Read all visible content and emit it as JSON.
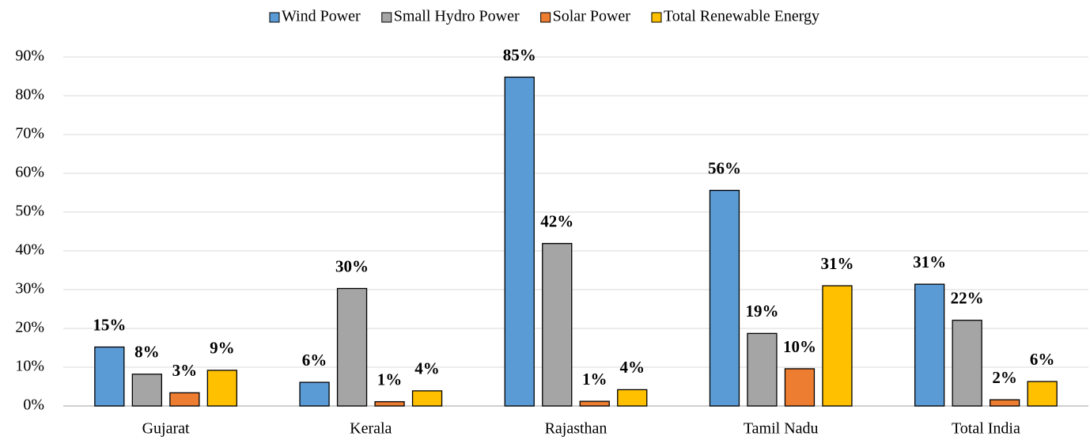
{
  "chart_data": {
    "type": "bar",
    "categories": [
      "Gujarat",
      "Kerala",
      "Rajasthan",
      "Tamil Nadu",
      "Total India"
    ],
    "series": [
      {
        "name": "Wind Power",
        "color": "#5b9bd5",
        "values": [
          15.2,
          6.1,
          84.8,
          55.6,
          31.4
        ],
        "value_labels": [
          "15%",
          "6%",
          "85%",
          "56%",
          "31%"
        ]
      },
      {
        "name": "Small Hydro Power",
        "color": "#a5a5a5",
        "values": [
          8.2,
          30.3,
          41.9,
          18.7,
          22.1
        ],
        "value_labels": [
          "8%",
          "30%",
          "42%",
          "19%",
          "22%"
        ]
      },
      {
        "name": "Solar Power",
        "color": "#ed7d31",
        "values": [
          3.4,
          1.1,
          1.2,
          9.6,
          1.6
        ],
        "value_labels": [
          "3%",
          "1%",
          "1%",
          "10%",
          "2%"
        ]
      },
      {
        "name": "Total Renewable Energy",
        "color": "#ffc000",
        "values": [
          9.2,
          3.9,
          4.2,
          31.0,
          6.3
        ],
        "value_labels": [
          "9%",
          "4%",
          "4%",
          "31%",
          "6%"
        ]
      }
    ],
    "ylim": [
      0,
      90
    ],
    "yticks": [
      {
        "value": 0,
        "label": "0%"
      },
      {
        "value": 10,
        "label": "10%"
      },
      {
        "value": 20,
        "label": "20%"
      },
      {
        "value": 30,
        "label": "30%"
      },
      {
        "value": 40,
        "label": "40%"
      },
      {
        "value": 50,
        "label": "50%"
      },
      {
        "value": 60,
        "label": "60%"
      },
      {
        "value": 70,
        "label": "70%"
      },
      {
        "value": 80,
        "label": "80%"
      },
      {
        "value": 90,
        "label": "90%"
      }
    ],
    "grid": true,
    "legend": "top"
  }
}
